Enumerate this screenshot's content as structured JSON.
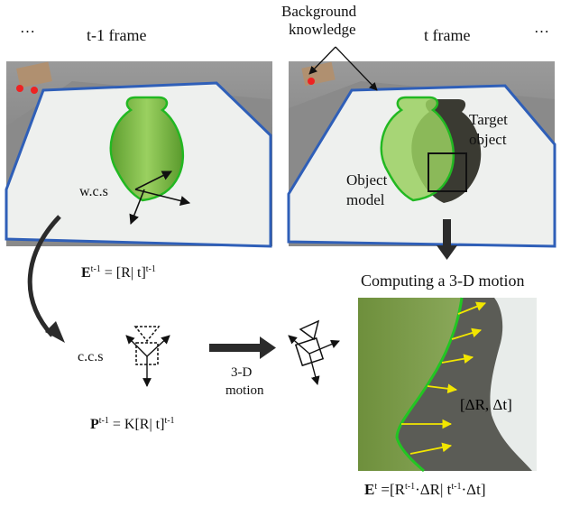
{
  "labels": {
    "ellipsis": "…",
    "prev_frame": "t-1 frame",
    "curr_frame": "t frame",
    "background_knowledge": [
      "Background",
      "knowledge"
    ],
    "target_object": [
      "Target",
      "object"
    ],
    "object_model": [
      "Object",
      "model"
    ],
    "wcs": "w.c.s",
    "ccs": "c.c.s",
    "motion": [
      "3-D",
      "motion"
    ],
    "computing": "Computing a 3-D motion",
    "delta": "[ΔR, Δt]"
  },
  "equations": {
    "E_prev": {
      "base": "E",
      "sup": "t-1",
      "rhs": "= [R| t]",
      "rhs_sup": "t-1"
    },
    "P_prev": {
      "base": "P",
      "sup": "t-1",
      "rhs": "= K[R| t]",
      "rhs_sup": "t-1"
    },
    "E_curr": {
      "base": "E",
      "sup": "t",
      "rhs1": "=[R",
      "sup1": "t-1",
      "rhs2": "·ΔR| t",
      "sup2": "t-1",
      "rhs3": "·Δt]"
    }
  },
  "colors": {
    "table_edge": "#2f5fb8",
    "vase_fill": "#7fbf45",
    "vase_edge": "#22b822",
    "arrow_yellow": "#f2e600",
    "dark_arrow": "#2b2b2b"
  }
}
